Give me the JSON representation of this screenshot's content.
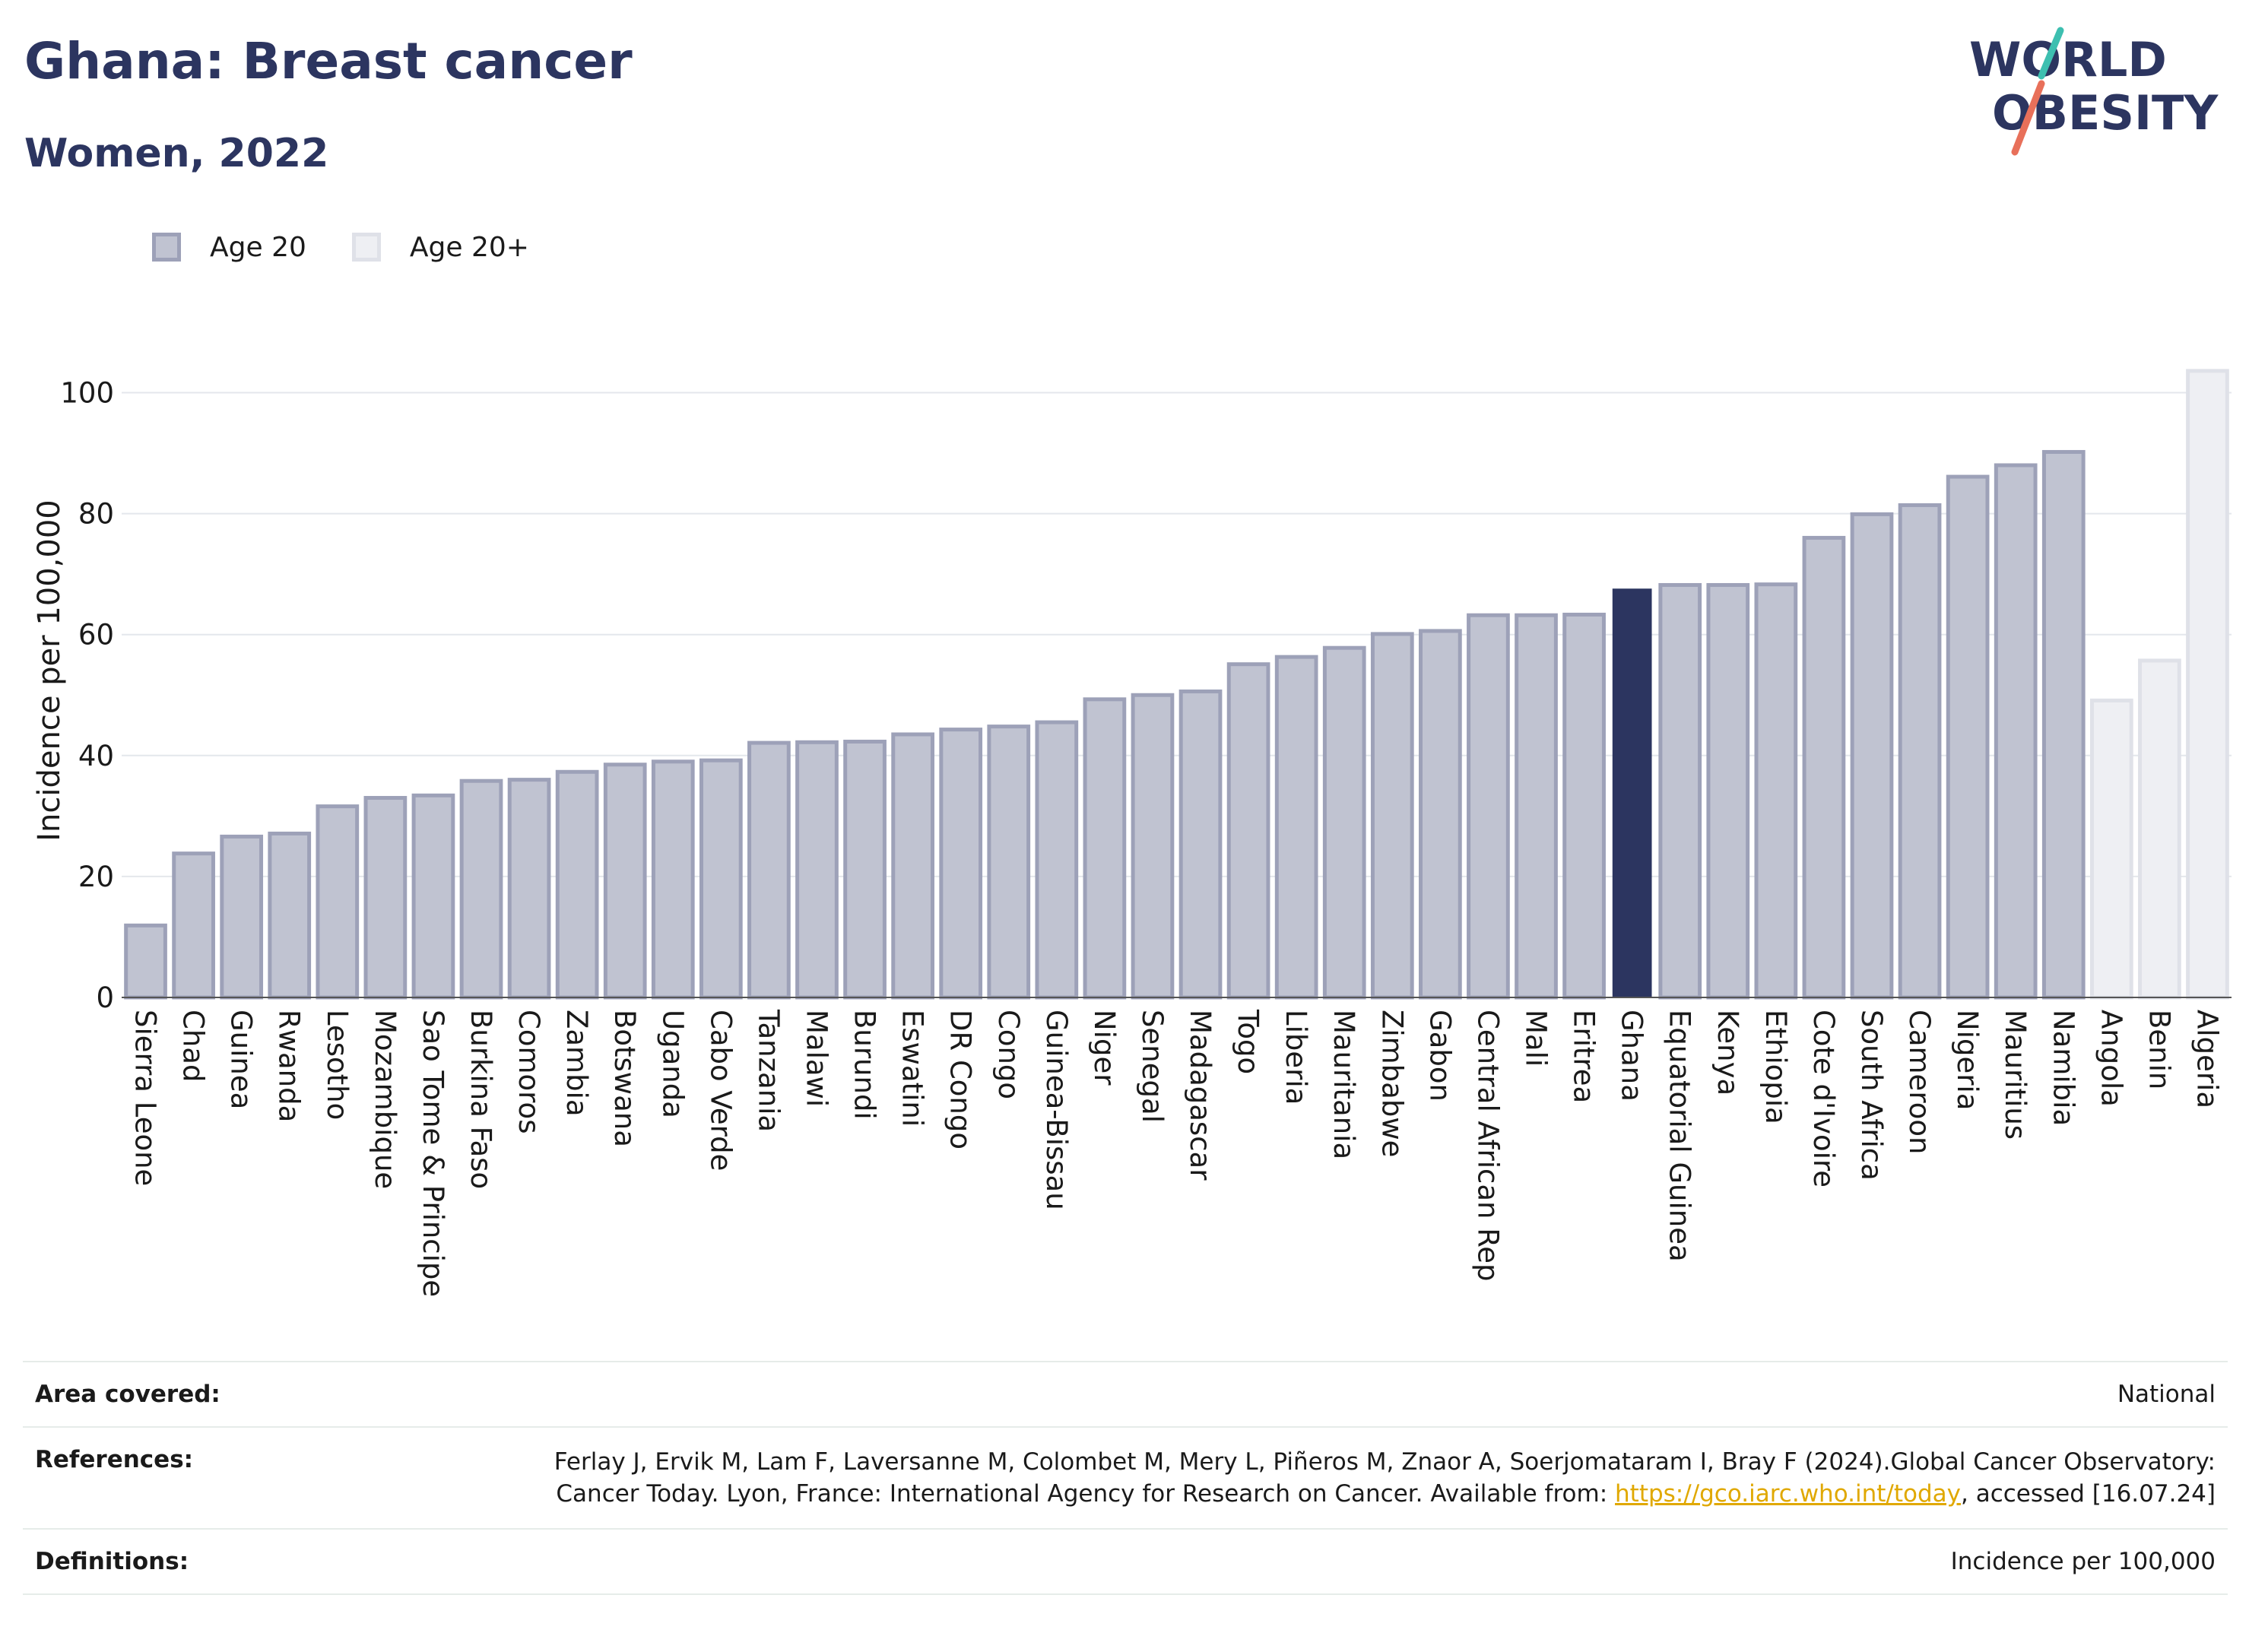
{
  "title": "Ghana: Breast cancer",
  "subtitle": "Women, 2022",
  "logo": {
    "line1": "WORLD",
    "line2": "OBESITY",
    "colors": {
      "text": "#2c3560",
      "slash_top": "#3dbfb0",
      "slash_bottom": "#e8705a"
    }
  },
  "legend": [
    {
      "label": "Age 20",
      "color": "#c0c3d1",
      "border": "#9da1b8"
    },
    {
      "label": "Age 20+",
      "color": "#eeeff3",
      "border": "#dfe1e8"
    }
  ],
  "chart_data": {
    "type": "bar",
    "ylabel": "Incidence per 100,000",
    "xlabel": "",
    "ylim": [
      0,
      105
    ],
    "yticks": [
      0,
      20,
      40,
      60,
      80,
      100
    ],
    "grid": true,
    "highlight": "Ghana",
    "colors": {
      "age20": "#c0c3d1",
      "age20_border": "#9da1b8",
      "age20plus": "#eeeff3",
      "age20plus_border": "#dfe1e8",
      "highlight": "#2c3560"
    },
    "categories": [
      "Sierra Leone",
      "Chad",
      "Guinea",
      "Rwanda",
      "Lesotho",
      "Mozambique",
      "Sao Tome & Principe",
      "Burkina Faso",
      "Comoros",
      "Zambia",
      "Botswana",
      "Uganda",
      "Cabo Verde",
      "Tanzania",
      "Malawi",
      "Burundi",
      "Eswatini",
      "DR Congo",
      "Congo",
      "Guinea-Bissau",
      "Niger",
      "Senegal",
      "Madagascar",
      "Togo",
      "Liberia",
      "Mauritania",
      "Zimbabwe",
      "Gabon",
      "Central African Rep",
      "Mali",
      "Eritrea",
      "Ghana",
      "Equatorial Guinea",
      "Kenya",
      "Ethiopia",
      "Cote d'Ivoire",
      "South Africa",
      "Cameroon",
      "Nigeria",
      "Mauritius",
      "Namibia",
      "Angola",
      "Benin",
      "Algeria"
    ],
    "values": [
      11.9,
      23.8,
      26.6,
      27.1,
      31.6,
      33.0,
      33.4,
      35.8,
      36.0,
      37.3,
      38.5,
      39.0,
      39.2,
      42.1,
      42.2,
      42.3,
      43.5,
      44.3,
      44.8,
      45.5,
      49.3,
      50.0,
      50.6,
      55.1,
      56.3,
      57.8,
      60.1,
      60.6,
      63.2,
      63.2,
      63.3,
      67.6,
      68.2,
      68.2,
      68.3,
      76.0,
      79.9,
      81.4,
      86.1,
      88.0,
      90.2,
      49.1,
      55.7,
      103.6
    ],
    "series_group": [
      "Age 20",
      "Age 20",
      "Age 20",
      "Age 20",
      "Age 20",
      "Age 20",
      "Age 20",
      "Age 20",
      "Age 20",
      "Age 20",
      "Age 20",
      "Age 20",
      "Age 20",
      "Age 20",
      "Age 20",
      "Age 20",
      "Age 20",
      "Age 20",
      "Age 20",
      "Age 20",
      "Age 20",
      "Age 20",
      "Age 20",
      "Age 20",
      "Age 20",
      "Age 20",
      "Age 20",
      "Age 20",
      "Age 20",
      "Age 20",
      "Age 20",
      "Age 20",
      "Age 20",
      "Age 20",
      "Age 20",
      "Age 20",
      "Age 20",
      "Age 20",
      "Age 20",
      "Age 20",
      "Age 20",
      "Age 20+",
      "Age 20+",
      "Age 20+"
    ]
  },
  "footer": {
    "area_label": "Area covered:",
    "area_value": "National",
    "references_label": "References:",
    "references_text": "Ferlay J, Ervik M, Lam F, Laversanne M, Colombet M, Mery L, Piñeros M, Znaor A, Soerjomataram I, Bray F (2024).Global Cancer Observatory: Cancer Today. Lyon, France: International Agency for Research on Cancer. Available from:",
    "references_link": "https://gco.iarc.who.int/today",
    "references_end": ", accessed [16.07.24]",
    "definitions_label": "Definitions:",
    "definitions_value": "Incidence per 100,000"
  }
}
